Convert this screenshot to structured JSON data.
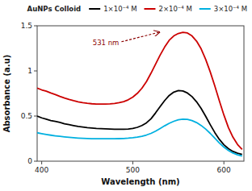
{
  "chart_data": {
    "type": "line",
    "xlabel": "Wavelength (nm)",
    "ylabel": "Absorbance (a.u)",
    "legend_title": "AuNPs Colloid",
    "legend": "upper right",
    "xlim": [
      395,
      622
    ],
    "ylim": [
      0,
      1.5
    ],
    "xticks": [
      400,
      500,
      600
    ],
    "yticks": [
      0,
      0.5,
      1,
      1.5
    ],
    "annotations": [
      {
        "text": "531 nm",
        "x": 531,
        "y": 1.43
      }
    ],
    "x": [
      395,
      400,
      405,
      410,
      415,
      420,
      425,
      430,
      435,
      440,
      445,
      450,
      455,
      460,
      465,
      470,
      475,
      480,
      485,
      490,
      495,
      500,
      505,
      510,
      515,
      520,
      525,
      530,
      535,
      540,
      545,
      550,
      555,
      560,
      565,
      570,
      575,
      580,
      585,
      590,
      595,
      600,
      605,
      610,
      615,
      620
    ],
    "series": [
      {
        "name": "1×10⁻⁴ M",
        "color": "black",
        "values": [
          0.5,
          0.48,
          0.465,
          0.45,
          0.44,
          0.43,
          0.415,
          0.405,
          0.395,
          0.385,
          0.378,
          0.372,
          0.368,
          0.363,
          0.36,
          0.358,
          0.356,
          0.354,
          0.353,
          0.353,
          0.356,
          0.362,
          0.375,
          0.395,
          0.425,
          0.47,
          0.535,
          0.605,
          0.672,
          0.728,
          0.765,
          0.782,
          0.778,
          0.755,
          0.715,
          0.658,
          0.585,
          0.498,
          0.405,
          0.318,
          0.242,
          0.182,
          0.138,
          0.108,
          0.088,
          0.075
        ]
      },
      {
        "name": "2×10⁻⁴ M",
        "color": "#cc0000",
        "values": [
          0.81,
          0.79,
          0.775,
          0.755,
          0.738,
          0.718,
          0.7,
          0.684,
          0.67,
          0.658,
          0.648,
          0.641,
          0.636,
          0.633,
          0.632,
          0.633,
          0.635,
          0.64,
          0.648,
          0.66,
          0.68,
          0.71,
          0.752,
          0.808,
          0.882,
          0.975,
          1.075,
          1.175,
          1.265,
          1.34,
          1.388,
          1.415,
          1.428,
          1.42,
          1.388,
          1.33,
          1.245,
          1.128,
          0.99,
          0.835,
          0.67,
          0.512,
          0.372,
          0.265,
          0.185,
          0.13
        ]
      },
      {
        "name": "3×10⁻⁴ M",
        "color": "#00b0e0",
        "values": [
          0.315,
          0.305,
          0.296,
          0.288,
          0.281,
          0.275,
          0.269,
          0.264,
          0.26,
          0.256,
          0.253,
          0.251,
          0.249,
          0.248,
          0.248,
          0.248,
          0.248,
          0.249,
          0.25,
          0.252,
          0.255,
          0.26,
          0.267,
          0.276,
          0.29,
          0.308,
          0.333,
          0.362,
          0.392,
          0.42,
          0.442,
          0.458,
          0.465,
          0.463,
          0.45,
          0.428,
          0.396,
          0.356,
          0.308,
          0.255,
          0.202,
          0.156,
          0.118,
          0.09,
          0.07,
          0.058
        ]
      }
    ]
  }
}
